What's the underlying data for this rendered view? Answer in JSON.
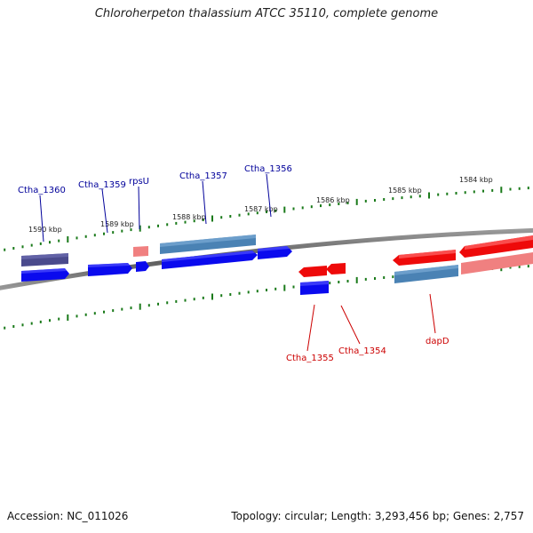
{
  "title": "Chloroherpeton thalassium ATCC 35110, complete genome",
  "footer": {
    "accession": "Accession: NC_011026",
    "summary": "Topology: circular; Length: 3,293,456 bp; Genes: 2,757"
  },
  "colors": {
    "forward_label": "#00009a",
    "reverse_label": "#cc0000",
    "tick": "#1a7a1a",
    "backbone": "#7a7a7a",
    "blue": "#0a0aee",
    "red": "#ee0a0a",
    "steelblue": "#4a82b4",
    "pink": "#f08080",
    "navy": "#4a4a8c"
  },
  "scale": {
    "ticks": [
      "1590 kbp",
      "1589 kbp",
      "1588 kbp",
      "1587 kbp",
      "1586 kbp",
      "1585 kbp",
      "1584 kbp"
    ]
  },
  "genes": [
    {
      "name": "Ctha_1360",
      "strand": "forward"
    },
    {
      "name": "Ctha_1359",
      "strand": "forward"
    },
    {
      "name": "rpsU",
      "strand": "forward"
    },
    {
      "name": "Ctha_1357",
      "strand": "forward"
    },
    {
      "name": "Ctha_1356",
      "strand": "forward"
    },
    {
      "name": "Ctha_1355",
      "strand": "reverse"
    },
    {
      "name": "Ctha_1354",
      "strand": "reverse"
    },
    {
      "name": "dapD",
      "strand": "reverse"
    }
  ]
}
